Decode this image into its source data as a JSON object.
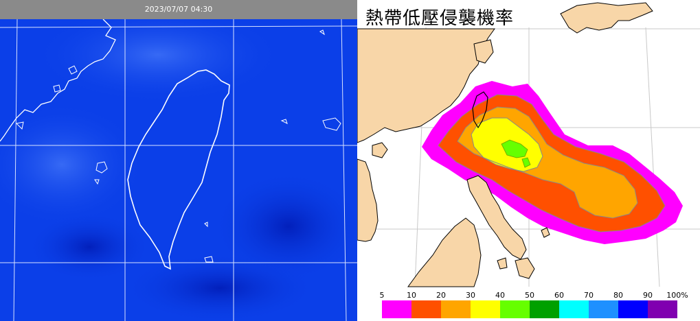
{
  "satellite": {
    "timestamp": "2023/07/07 04:30"
  },
  "probability_map": {
    "title": "熱帶低壓侵襲機率"
  },
  "legend": {
    "ticks": [
      "5",
      "10",
      "20",
      "30",
      "40",
      "50",
      "60",
      "70",
      "80",
      "90",
      "100%"
    ],
    "colors": [
      "#ff00ff",
      "#ff5000",
      "#ffa500",
      "#ffff00",
      "#66ff00",
      "#00a000",
      "#00ffff",
      "#1e90ff",
      "#0000ff",
      "#8000b0"
    ]
  },
  "colors": {
    "sat_background": "#0b3fe8",
    "land": "#f8d6a8"
  }
}
